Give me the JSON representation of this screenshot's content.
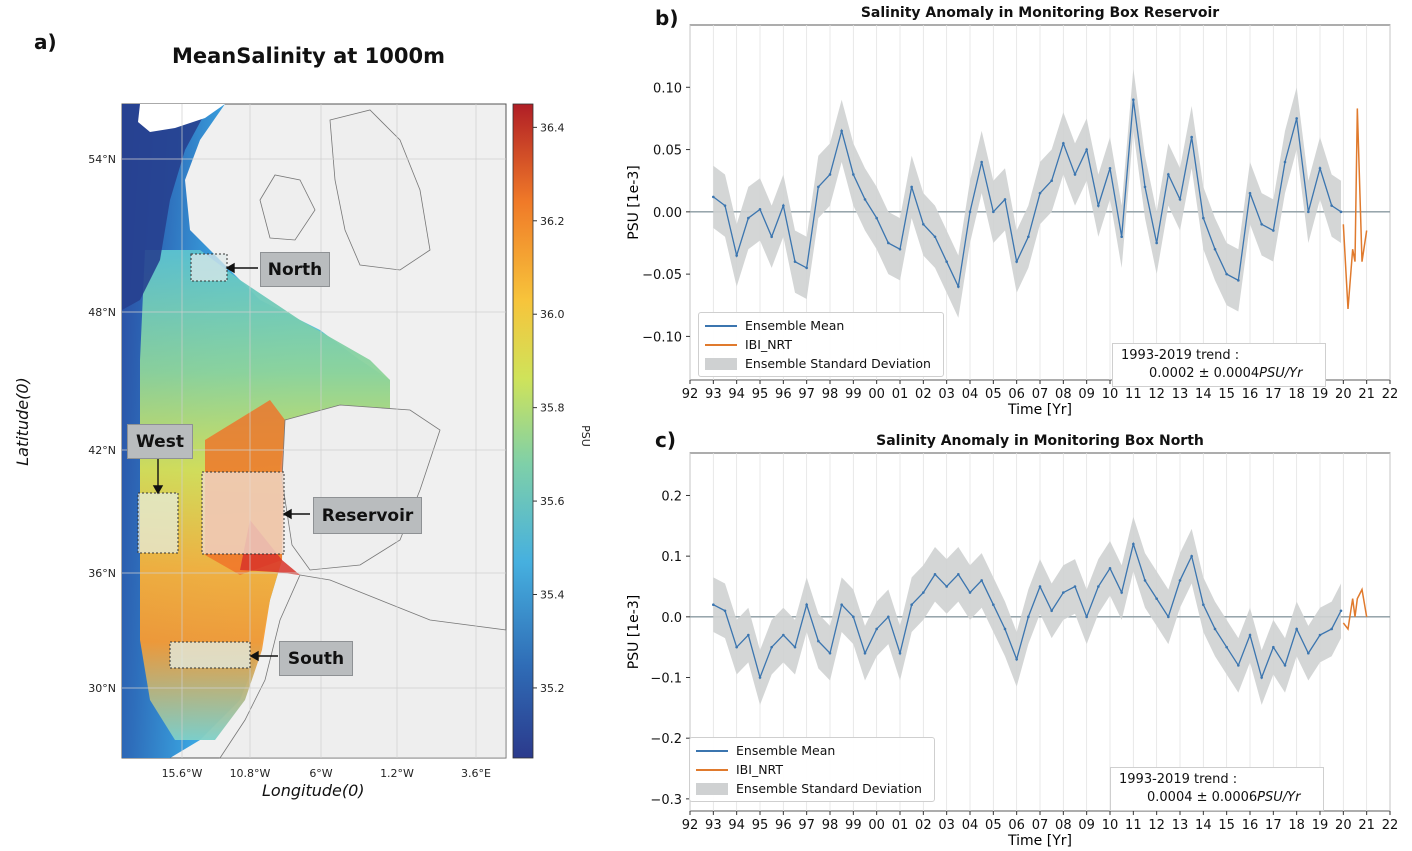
{
  "panel_a": {
    "letter": "a)",
    "title": "MeanSalinity at 1000m",
    "lat_ticks": [
      "54°N",
      "48°N",
      "42°N",
      "36°N",
      "30°N"
    ],
    "lon_ticks": [
      "15.6°W",
      "10.8°W",
      "6°W",
      "1.2°W",
      "3.6°E"
    ],
    "xlabel": "Longitude(0)",
    "ylabel": "Latitude(0)",
    "colorbar": {
      "label": "PSU",
      "ticks": [
        "36.4",
        "36.2",
        "36.0",
        "35.8",
        "35.6",
        "35.4",
        "35.2"
      ],
      "min": 35.05,
      "max": 36.45
    },
    "boxes": {
      "north": "North",
      "west": "West",
      "reservoir": "Reservoir",
      "south": "South"
    },
    "colors": {
      "ocean_land": "#eeeeee",
      "cold": "#2a3f8f",
      "warm": "#d0202a"
    }
  },
  "chart_data": [
    {
      "type": "line",
      "panel": "b)",
      "title": "Salinity Anomaly in Monitoring Box Reservoir",
      "xlabel": "Time [Yr]",
      "ylabel": "PSU [1e-3]",
      "xticks": [
        "92",
        "93",
        "94",
        "95",
        "96",
        "97",
        "98",
        "99",
        "00",
        "01",
        "02",
        "03",
        "04",
        "05",
        "06",
        "07",
        "08",
        "09",
        "10",
        "11",
        "12",
        "13",
        "14",
        "15",
        "16",
        "17",
        "18",
        "19",
        "20",
        "21",
        "22"
      ],
      "xlim": [
        1992,
        2022
      ],
      "ylim": [
        -0.135,
        0.15
      ],
      "yticks": [
        "0.10",
        "0.05",
        "0.00",
        "−0.05",
        "−0.10"
      ],
      "ytick_values": [
        0.1,
        0.05,
        0.0,
        -0.05,
        -0.1
      ],
      "series": [
        {
          "name": "Ensemble Mean",
          "color": "#3b75af",
          "x": [
            1993.0,
            1993.5,
            1994.0,
            1994.5,
            1995.0,
            1995.5,
            1996.0,
            1996.5,
            1997.0,
            1997.5,
            1998.0,
            1998.5,
            1999.0,
            1999.5,
            2000.0,
            2000.5,
            2001.0,
            2001.5,
            2002.0,
            2002.5,
            2003.0,
            2003.5,
            2004.0,
            2004.5,
            2005.0,
            2005.5,
            2006.0,
            2006.5,
            2007.0,
            2007.5,
            2008.0,
            2008.5,
            2009.0,
            2009.5,
            2010.0,
            2010.5,
            2011.0,
            2011.5,
            2012.0,
            2012.5,
            2013.0,
            2013.5,
            2014.0,
            2014.5,
            2015.0,
            2015.5,
            2016.0,
            2016.5,
            2017.0,
            2017.5,
            2018.0,
            2018.5,
            2019.0,
            2019.5,
            2019.9
          ],
          "values": [
            0.012,
            0.005,
            -0.035,
            -0.005,
            0.002,
            -0.02,
            0.005,
            -0.04,
            -0.045,
            0.02,
            0.03,
            0.065,
            0.03,
            0.01,
            -0.005,
            -0.025,
            -0.03,
            0.02,
            -0.01,
            -0.02,
            -0.04,
            -0.06,
            0.0,
            0.04,
            0.0,
            0.01,
            -0.04,
            -0.02,
            0.015,
            0.025,
            0.055,
            0.03,
            0.05,
            0.005,
            0.035,
            -0.02,
            0.09,
            0.02,
            -0.025,
            0.03,
            0.01,
            0.06,
            -0.005,
            -0.03,
            -0.05,
            -0.055,
            0.015,
            -0.01,
            -0.015,
            0.04,
            0.075,
            0.0,
            0.035,
            0.005,
            0.0
          ]
        },
        {
          "name": "IBI_NRT",
          "color": "#e07a2d",
          "x": [
            2020.0,
            2020.2,
            2020.4,
            2020.5,
            2020.6,
            2020.8,
            2021.0
          ],
          "values": [
            -0.01,
            -0.078,
            -0.03,
            -0.04,
            0.083,
            -0.04,
            -0.015
          ]
        },
        {
          "name": "Ensemble Standard Deviation",
          "color": "#cfd1d2",
          "band_width": 0.025
        }
      ],
      "trend": {
        "line1": "1993-2019 trend :",
        "value": "0.0002 ± 0.0004",
        "unit": "PSU/Yr"
      }
    },
    {
      "type": "line",
      "panel": "c)",
      "title": "Salinity Anomaly in Monitoring Box North",
      "xlabel": "Time [Yr]",
      "ylabel": "PSU [1e-3]",
      "xticks": [
        "92",
        "93",
        "94",
        "95",
        "96",
        "97",
        "98",
        "99",
        "00",
        "01",
        "02",
        "03",
        "04",
        "05",
        "06",
        "07",
        "08",
        "09",
        "10",
        "11",
        "12",
        "13",
        "14",
        "15",
        "16",
        "17",
        "18",
        "19",
        "20",
        "21",
        "22"
      ],
      "xlim": [
        1992,
        2022
      ],
      "ylim": [
        -0.32,
        0.27
      ],
      "yticks": [
        "0.2",
        "0.1",
        "0.0",
        "−0.1",
        "−0.2",
        "−0.3"
      ],
      "ytick_values": [
        0.2,
        0.1,
        0.0,
        -0.1,
        -0.2,
        -0.3
      ],
      "series": [
        {
          "name": "Ensemble Mean",
          "color": "#3b75af",
          "x": [
            1993.0,
            1993.5,
            1994.0,
            1994.5,
            1995.0,
            1995.5,
            1996.0,
            1996.5,
            1997.0,
            1997.5,
            1998.0,
            1998.5,
            1999.0,
            1999.5,
            2000.0,
            2000.5,
            2001.0,
            2001.5,
            2002.0,
            2002.5,
            2003.0,
            2003.5,
            2004.0,
            2004.5,
            2005.0,
            2005.5,
            2006.0,
            2006.5,
            2007.0,
            2007.5,
            2008.0,
            2008.5,
            2009.0,
            2009.5,
            2010.0,
            2010.5,
            2011.0,
            2011.5,
            2012.0,
            2012.5,
            2013.0,
            2013.5,
            2014.0,
            2014.5,
            2015.0,
            2015.5,
            2016.0,
            2016.5,
            2017.0,
            2017.5,
            2018.0,
            2018.5,
            2019.0,
            2019.5,
            2019.9
          ],
          "values": [
            0.02,
            0.01,
            -0.05,
            -0.03,
            -0.1,
            -0.05,
            -0.03,
            -0.05,
            0.02,
            -0.04,
            -0.06,
            0.02,
            0.0,
            -0.06,
            -0.02,
            0.0,
            -0.06,
            0.02,
            0.04,
            0.07,
            0.05,
            0.07,
            0.04,
            0.06,
            0.02,
            -0.02,
            -0.07,
            0.0,
            0.05,
            0.01,
            0.04,
            0.05,
            0.0,
            0.05,
            0.08,
            0.04,
            0.12,
            0.06,
            0.03,
            0.0,
            0.06,
            0.1,
            0.02,
            -0.02,
            -0.05,
            -0.08,
            -0.03,
            -0.1,
            -0.05,
            -0.08,
            -0.02,
            -0.06,
            -0.03,
            -0.02,
            0.01
          ]
        },
        {
          "name": "IBI_NRT",
          "color": "#e07a2d",
          "x": [
            2020.0,
            2020.2,
            2020.4,
            2020.5,
            2020.6,
            2020.8,
            2021.0
          ],
          "values": [
            -0.01,
            -0.02,
            0.03,
            0.0,
            0.03,
            0.045,
            0.0
          ]
        },
        {
          "name": "Ensemble Standard Deviation",
          "color": "#cfd1d2",
          "band_width": 0.045
        }
      ],
      "trend": {
        "line1": "1993-2019 trend :",
        "value": "0.0004 ± 0.0006",
        "unit": "PSU/Yr"
      }
    }
  ]
}
